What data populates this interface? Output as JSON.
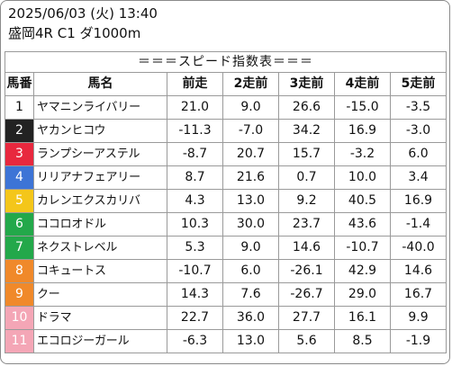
{
  "header": {
    "datetime": "2025/06/03 (火) 13:40",
    "race": "盛岡4R C1 ダ1000m"
  },
  "table": {
    "title": "＝＝＝スピード指数表＝＝＝",
    "columns": [
      "馬番",
      "馬名",
      "前走",
      "2走前",
      "3走前",
      "4走前",
      "5走前"
    ],
    "rows": [
      {
        "no": "1",
        "name": "ヤマニンライバリー",
        "v": [
          "21.0",
          "9.0",
          "26.6",
          "-15.0",
          "-3.5"
        ],
        "bg": "#ffffff",
        "fg": "#111111"
      },
      {
        "no": "2",
        "name": "ヤカンヒコウ",
        "v": [
          "-11.3",
          "-7.0",
          "34.2",
          "16.9",
          "-3.0"
        ],
        "bg": "#222222",
        "fg": "#ffffff"
      },
      {
        "no": "3",
        "name": "ランプシーアステル",
        "v": [
          "-8.7",
          "20.7",
          "15.7",
          "-3.2",
          "6.0"
        ],
        "bg": "#e8283e",
        "fg": "#ffffff"
      },
      {
        "no": "4",
        "name": "リリアナフェアリー",
        "v": [
          "8.7",
          "21.6",
          "0.7",
          "10.0",
          "3.4"
        ],
        "bg": "#3d74d6",
        "fg": "#ffffff"
      },
      {
        "no": "5",
        "name": "カレンエクスカリバ",
        "v": [
          "4.3",
          "13.0",
          "9.2",
          "40.5",
          "16.9"
        ],
        "bg": "#f4c61a",
        "fg": "#ffffff"
      },
      {
        "no": "6",
        "name": "ココロオドル",
        "v": [
          "10.3",
          "30.0",
          "23.7",
          "43.6",
          "-1.4"
        ],
        "bg": "#23a84a",
        "fg": "#ffffff"
      },
      {
        "no": "7",
        "name": "ネクストレベル",
        "v": [
          "5.3",
          "9.0",
          "14.6",
          "-10.7",
          "-40.0"
        ],
        "bg": "#23a84a",
        "fg": "#ffffff"
      },
      {
        "no": "8",
        "name": "コキュートス",
        "v": [
          "-10.7",
          "6.0",
          "-26.1",
          "42.9",
          "14.6"
        ],
        "bg": "#f0892a",
        "fg": "#ffffff"
      },
      {
        "no": "9",
        "name": "クー",
        "v": [
          "14.3",
          "7.6",
          "-26.7",
          "29.0",
          "16.7"
        ],
        "bg": "#f0892a",
        "fg": "#ffffff"
      },
      {
        "no": "10",
        "name": "ドラマ",
        "v": [
          "22.7",
          "36.0",
          "27.7",
          "16.1",
          "9.9"
        ],
        "bg": "#f4a6b6",
        "fg": "#ffffff"
      },
      {
        "no": "11",
        "name": "エコロジーガール",
        "v": [
          "-6.3",
          "13.0",
          "5.6",
          "8.5",
          "-1.9"
        ],
        "bg": "#f4a6b6",
        "fg": "#ffffff"
      }
    ]
  }
}
